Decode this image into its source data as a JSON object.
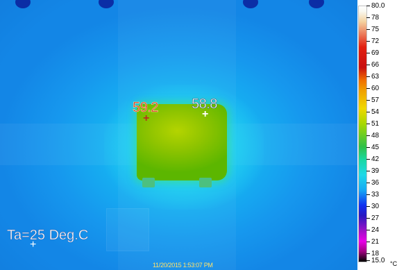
{
  "image": {
    "spot_readings": [
      {
        "value": "59.2",
        "color": "#d82020"
      },
      {
        "value": "58.8",
        "color": "#ffffff"
      }
    ],
    "ambient_label": "Ta=25 Deg.C",
    "timestamp": "11/20/2015 1:53:07 PM"
  },
  "scale": {
    "max": "80.0",
    "ticks": [
      "78",
      "75",
      "72",
      "69",
      "66",
      "63",
      "60",
      "57",
      "54",
      "51",
      "48",
      "45",
      "42",
      "39",
      "36",
      "33",
      "30",
      "27",
      "24",
      "21",
      "18"
    ],
    "min": "15.0",
    "unit": "°C"
  }
}
